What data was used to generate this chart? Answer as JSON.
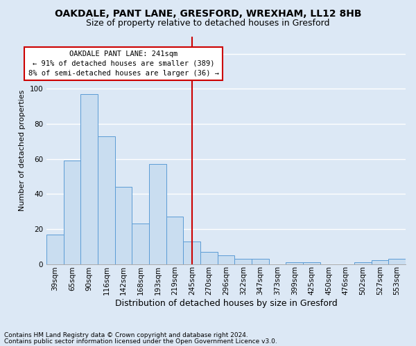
{
  "title1": "OAKDALE, PANT LANE, GRESFORD, WREXHAM, LL12 8HB",
  "title2": "Size of property relative to detached houses in Gresford",
  "xlabel": "Distribution of detached houses by size in Gresford",
  "ylabel": "Number of detached properties",
  "footnote1": "Contains HM Land Registry data © Crown copyright and database right 2024.",
  "footnote2": "Contains public sector information licensed under the Open Government Licence v3.0.",
  "categories": [
    "39sqm",
    "65sqm",
    "90sqm",
    "116sqm",
    "142sqm",
    "168sqm",
    "193sqm",
    "219sqm",
    "245sqm",
    "270sqm",
    "296sqm",
    "322sqm",
    "347sqm",
    "373sqm",
    "399sqm",
    "425sqm",
    "450sqm",
    "476sqm",
    "502sqm",
    "527sqm",
    "553sqm"
  ],
  "values": [
    17,
    59,
    97,
    73,
    44,
    23,
    57,
    27,
    13,
    7,
    5,
    3,
    3,
    0,
    1,
    1,
    0,
    0,
    1,
    2,
    3
  ],
  "bar_color": "#c9ddf0",
  "bar_edge_color": "#5b9bd5",
  "vline_x": 8,
  "vline_color": "#cc0000",
  "annotation_line1": "OAKDALE PANT LANE: 241sqm",
  "annotation_line2": "← 91% of detached houses are smaller (389)",
  "annotation_line3": "8% of semi-detached houses are larger (36) →",
  "annotation_box_color": "#ffffff",
  "annotation_box_edge": "#cc0000",
  "ylim": [
    0,
    130
  ],
  "yticks": [
    0,
    20,
    40,
    60,
    80,
    100,
    120
  ],
  "bg_color": "#dce8f5",
  "plot_bg_color": "#dce8f5",
  "grid_color": "#ffffff",
  "title1_fontsize": 10,
  "title2_fontsize": 9,
  "xlabel_fontsize": 9,
  "ylabel_fontsize": 8,
  "tick_fontsize": 7.5,
  "footnote_fontsize": 6.5
}
